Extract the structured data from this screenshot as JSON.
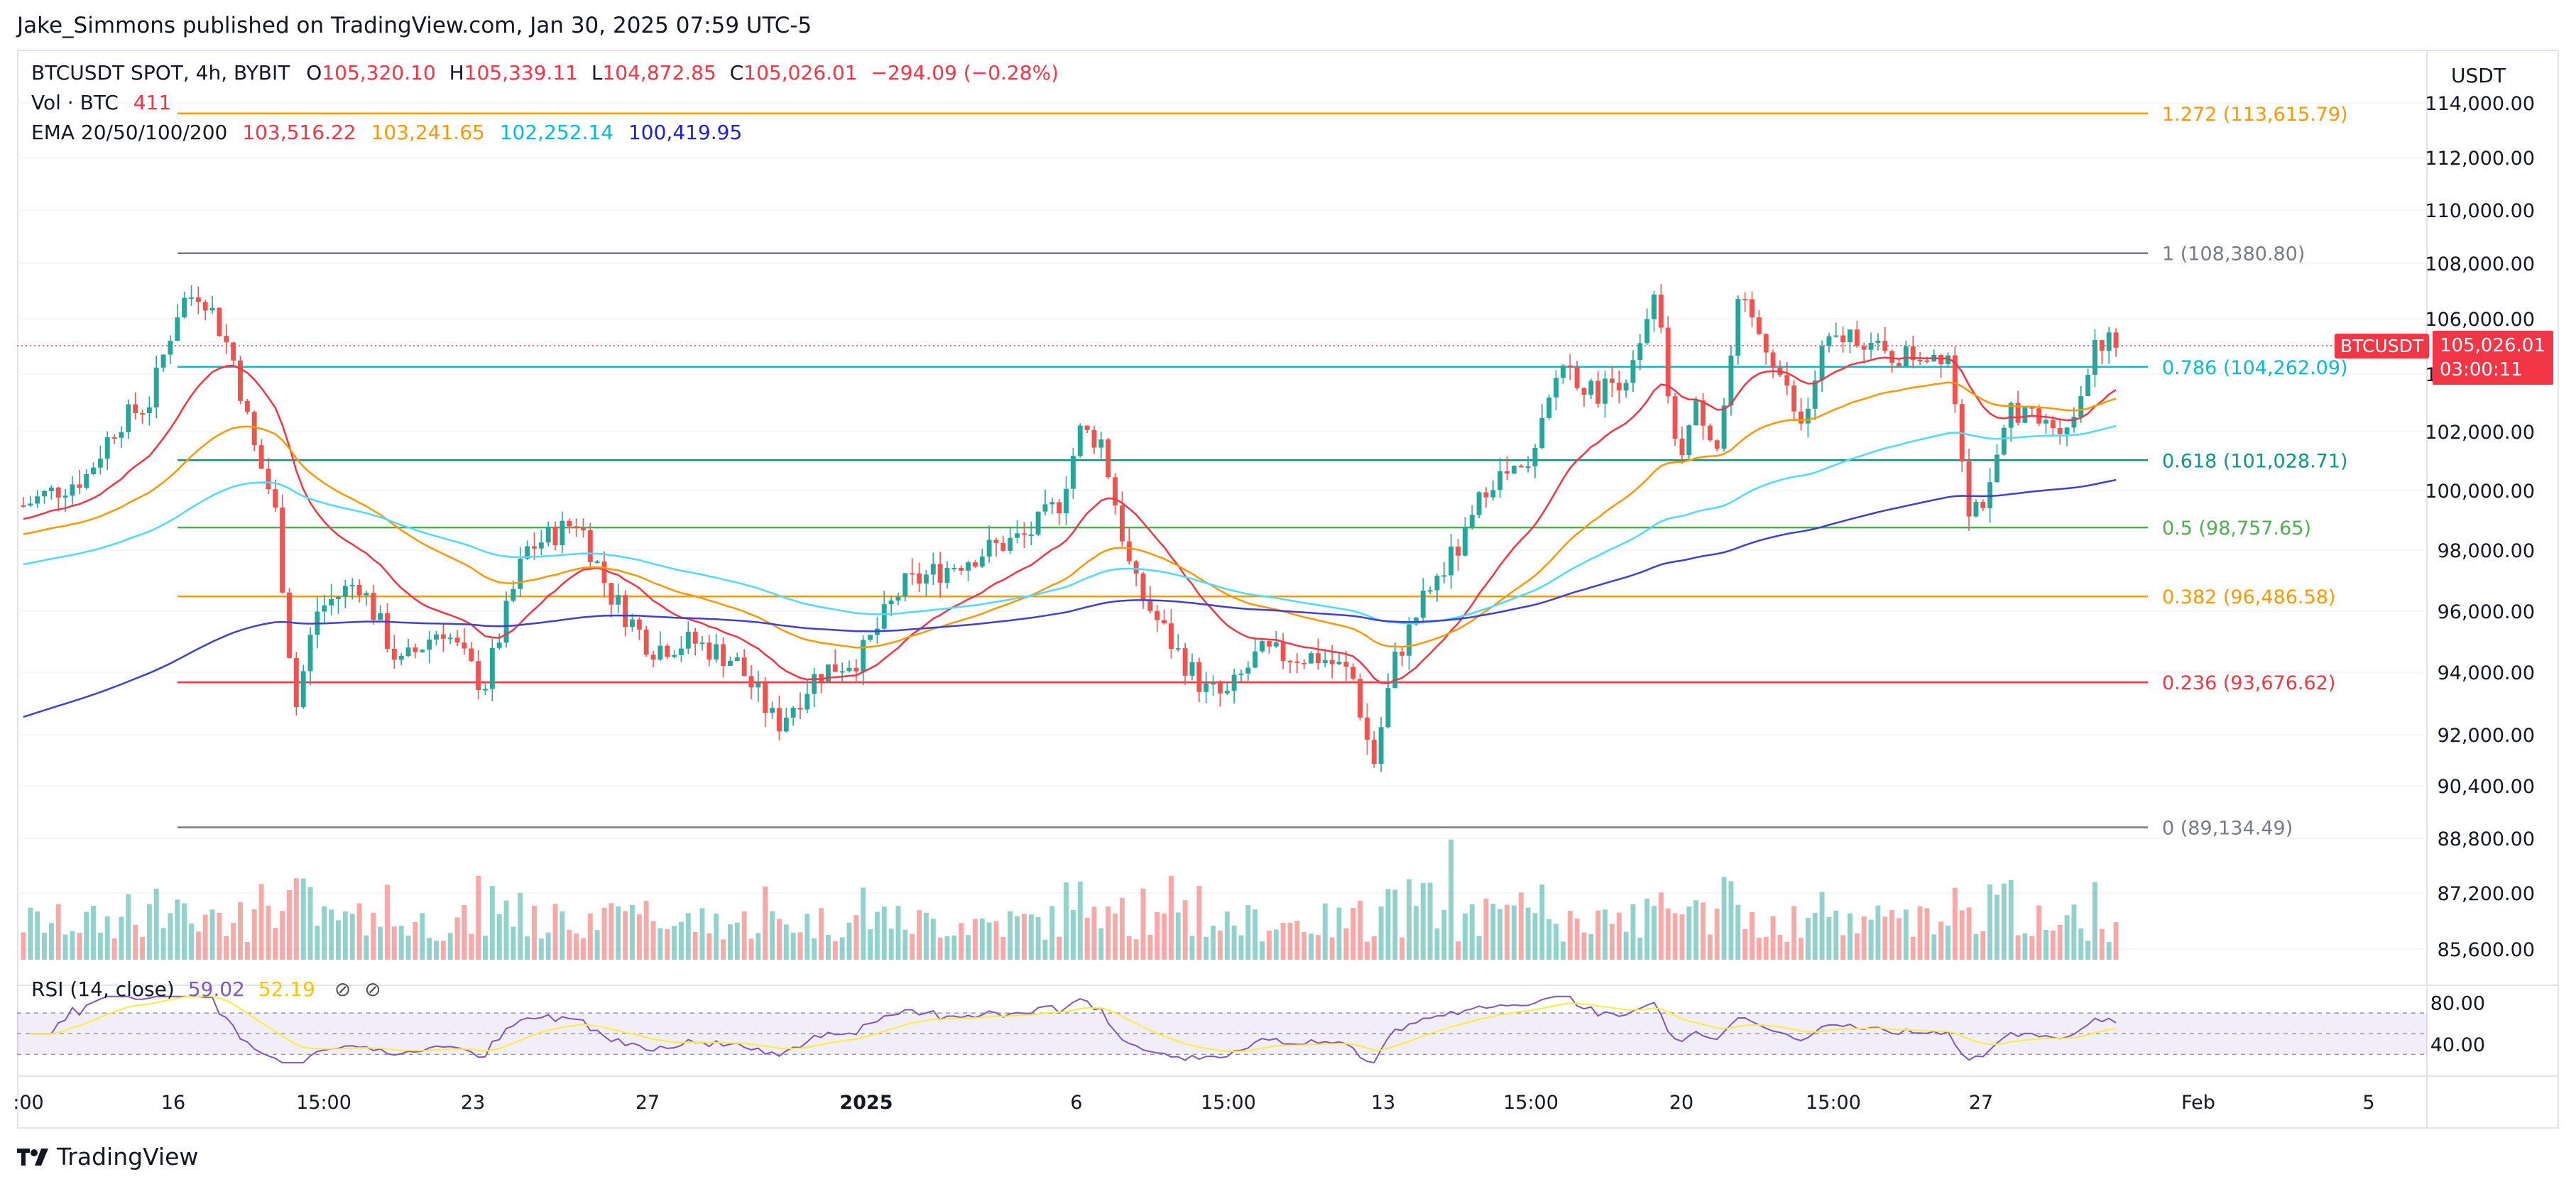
{
  "header": {
    "publisher": "Jake_Simmons published on TradingView.com, Jan 30, 2025 07:59 UTC-5"
  },
  "legend": {
    "symbol": "BTCUSDT SPOT, 4h, BYBIT",
    "o_label": "O",
    "o_value": "105,320.10",
    "h_label": "H",
    "h_value": "105,339.11",
    "l_label": "L",
    "l_value": "104,872.85",
    "c_label": "C",
    "c_value": "105,026.01",
    "change": "−294.09 (−0.28%)",
    "vol_label": "Vol · BTC",
    "vol_value": "411",
    "ema_label": "EMA 20/50/100/200",
    "ema20": "103,516.22",
    "ema50": "103,241.65",
    "ema100": "102,252.14",
    "ema200": "100,419.95"
  },
  "rsi_legend": {
    "label": "RSI (14, close)",
    "value": "59.02",
    "value2": "52.19",
    "icon1": "hidden-icon",
    "icon2": "hidden-icon"
  },
  "price_axis": {
    "currency": "USDT"
  },
  "current_price": {
    "symbol": "BTCUSDT",
    "price": "105,026.01",
    "countdown": "03:00:11"
  },
  "footer": {
    "brand": "TradingView"
  },
  "colors": {
    "up": "#26a69a",
    "down": "#ef5350",
    "ema20": "#f23645",
    "ema50": "#ff9800",
    "ema100": "#4ddbff",
    "ema200": "#3f3fd1",
    "rsi": "#7e57c2",
    "rsi_ma": "#ffeb3b"
  },
  "chart_data": {
    "type": "candlestick",
    "symbol": "BTCUSDT",
    "timeframe": "4h",
    "y_axis_ticks": [
      "114,000.00",
      "112,000.00",
      "110,000.00",
      "108,000.00",
      "106,000.00",
      "104,000.00",
      "102,000.00",
      "100,000.00",
      "98,000.00",
      "96,000.00",
      "94,000.00",
      "92,000.00",
      "90,400.00",
      "88,800.00",
      "87,200.00",
      "85,600.00"
    ],
    "rsi_ticks": [
      "80.00",
      "40.00"
    ],
    "x_axis_ticks": [
      ":00",
      "16",
      "15:00",
      "23",
      "27",
      "2025",
      "6",
      "15:00",
      "13",
      "15:00",
      "20",
      "15:00",
      "27",
      "Feb",
      "5"
    ],
    "fib_levels": [
      {
        "ratio": "1.272",
        "label": "1.272 (113,615.79)",
        "price": 113615.79,
        "color": "#ff9800"
      },
      {
        "ratio": "1",
        "label": "1 (108,380.80)",
        "price": 108380.8,
        "color": "#787b86"
      },
      {
        "ratio": "0.786",
        "label": "0.786 (104,262.09)",
        "price": 104262.09,
        "color": "#00bcd4"
      },
      {
        "ratio": "0.618",
        "label": "0.618 (101,028.71)",
        "price": 101028.71,
        "color": "#089981"
      },
      {
        "ratio": "0.5",
        "label": "0.5 (98,757.65)",
        "price": 98757.65,
        "color": "#4caf50"
      },
      {
        "ratio": "0.382",
        "label": "0.382 (96,486.58)",
        "price": 96486.58,
        "color": "#ff9800"
      },
      {
        "ratio": "0.236",
        "label": "0.236 (93,676.62)",
        "price": 93676.62,
        "color": "#f23645"
      },
      {
        "ratio": "0",
        "label": "0 (89,134.49)",
        "price": 89134.49,
        "color": "#787b86"
      }
    ],
    "price_path": [
      {
        "t": 0,
        "p": 99500
      },
      {
        "t": 0.03,
        "p": 100500
      },
      {
        "t": 0.045,
        "p": 102300
      },
      {
        "t": 0.06,
        "p": 103000
      },
      {
        "t": 0.075,
        "p": 106600
      },
      {
        "t": 0.085,
        "p": 107000
      },
      {
        "t": 0.09,
        "p": 106300
      },
      {
        "t": 0.1,
        "p": 104600
      },
      {
        "t": 0.11,
        "p": 101500
      },
      {
        "t": 0.12,
        "p": 99500
      },
      {
        "t": 0.13,
        "p": 92800
      },
      {
        "t": 0.14,
        "p": 96000
      },
      {
        "t": 0.16,
        "p": 97000
      },
      {
        "t": 0.18,
        "p": 94200
      },
      {
        "t": 0.2,
        "p": 95500
      },
      {
        "t": 0.22,
        "p": 93500
      },
      {
        "t": 0.24,
        "p": 98000
      },
      {
        "t": 0.265,
        "p": 99000
      },
      {
        "t": 0.28,
        "p": 96600
      },
      {
        "t": 0.3,
        "p": 94800
      },
      {
        "t": 0.32,
        "p": 95000
      },
      {
        "t": 0.34,
        "p": 94400
      },
      {
        "t": 0.36,
        "p": 92300
      },
      {
        "t": 0.38,
        "p": 94000
      },
      {
        "t": 0.4,
        "p": 94500
      },
      {
        "t": 0.42,
        "p": 96800
      },
      {
        "t": 0.44,
        "p": 97400
      },
      {
        "t": 0.46,
        "p": 98000
      },
      {
        "t": 0.48,
        "p": 98500
      },
      {
        "t": 0.495,
        "p": 99600
      },
      {
        "t": 0.505,
        "p": 102000
      },
      {
        "t": 0.515,
        "p": 101700
      },
      {
        "t": 0.53,
        "p": 97000
      },
      {
        "t": 0.55,
        "p": 94800
      },
      {
        "t": 0.565,
        "p": 93400
      },
      {
        "t": 0.575,
        "p": 93200
      },
      {
        "t": 0.59,
        "p": 94600
      },
      {
        "t": 0.62,
        "p": 94500
      },
      {
        "t": 0.635,
        "p": 93900
      },
      {
        "t": 0.645,
        "p": 91000
      },
      {
        "t": 0.655,
        "p": 94300
      },
      {
        "t": 0.67,
        "p": 96500
      },
      {
        "t": 0.69,
        "p": 98500
      },
      {
        "t": 0.7,
        "p": 100400
      },
      {
        "t": 0.72,
        "p": 100600
      },
      {
        "t": 0.735,
        "p": 104500
      },
      {
        "t": 0.75,
        "p": 103300
      },
      {
        "t": 0.77,
        "p": 104200
      },
      {
        "t": 0.78,
        "p": 106800
      },
      {
        "t": 0.79,
        "p": 101000
      },
      {
        "t": 0.8,
        "p": 102900
      },
      {
        "t": 0.81,
        "p": 101500
      },
      {
        "t": 0.82,
        "p": 106600
      },
      {
        "t": 0.835,
        "p": 104800
      },
      {
        "t": 0.85,
        "p": 102000
      },
      {
        "t": 0.86,
        "p": 104900
      },
      {
        "t": 0.875,
        "p": 105500
      },
      {
        "t": 0.89,
        "p": 104600
      },
      {
        "t": 0.92,
        "p": 104800
      },
      {
        "t": 0.93,
        "p": 99400
      },
      {
        "t": 0.94,
        "p": 99900
      },
      {
        "t": 0.95,
        "p": 102900
      },
      {
        "t": 0.965,
        "p": 102200
      },
      {
        "t": 0.98,
        "p": 102400
      },
      {
        "t": 0.99,
        "p": 105300
      },
      {
        "t": 1,
        "p": 105026
      }
    ]
  }
}
